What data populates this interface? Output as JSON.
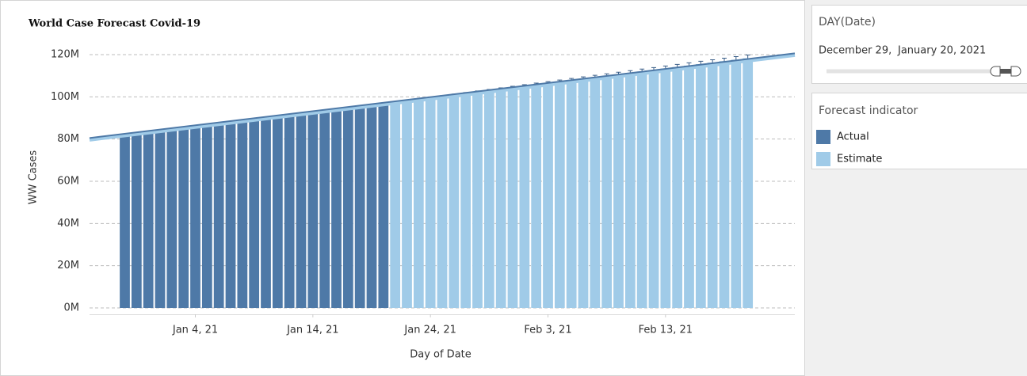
{
  "chart_data": {
    "type": "bar",
    "title": "World Case Forecast Covid-19",
    "x_label": "Day of Date",
    "y_label": "WW Cases",
    "legend_title": "Forecast indicator",
    "x": [
      "2020-12-29",
      "2020-12-30",
      "2020-12-31",
      "2021-01-01",
      "2021-01-02",
      "2021-01-03",
      "2021-01-04",
      "2021-01-05",
      "2021-01-06",
      "2021-01-07",
      "2021-01-08",
      "2021-01-09",
      "2021-01-10",
      "2021-01-11",
      "2021-01-12",
      "2021-01-13",
      "2021-01-14",
      "2021-01-15",
      "2021-01-16",
      "2021-01-17",
      "2021-01-18",
      "2021-01-19",
      "2021-01-20",
      "2021-01-21",
      "2021-01-22",
      "2021-01-23",
      "2021-01-24",
      "2021-01-25",
      "2021-01-26",
      "2021-01-27",
      "2021-01-28",
      "2021-01-29",
      "2021-01-30",
      "2021-01-31",
      "2021-02-01",
      "2021-02-02",
      "2021-02-03",
      "2021-02-04",
      "2021-02-05",
      "2021-02-06",
      "2021-02-07",
      "2021-02-08",
      "2021-02-09",
      "2021-02-10",
      "2021-02-11",
      "2021-02-12",
      "2021-02-13",
      "2021-02-14",
      "2021-02-15",
      "2021-02-16",
      "2021-02-17",
      "2021-02-18",
      "2021-02-19",
      "2021-02-20"
    ],
    "series": [
      {
        "name": "Actual",
        "color": "#4e79a7",
        "values": [
          81.9,
          82.5,
          83.1,
          83.7,
          84.4,
          85.0,
          85.6,
          86.3,
          87.0,
          87.7,
          88.4,
          89.0,
          89.7,
          90.4,
          91.1,
          91.8,
          92.5,
          93.2,
          93.8,
          94.5,
          95.2,
          95.9,
          96.6,
          null,
          null,
          null,
          null,
          null,
          null,
          null,
          null,
          null,
          null,
          null,
          null,
          null,
          null,
          null,
          null,
          null,
          null,
          null,
          null,
          null,
          null,
          null,
          null,
          null,
          null,
          null,
          null,
          null,
          null,
          null
        ]
      },
      {
        "name": "Estimate",
        "color": "#a0cbe8",
        "values": [
          null,
          null,
          null,
          null,
          null,
          null,
          null,
          null,
          null,
          null,
          null,
          null,
          null,
          null,
          null,
          null,
          null,
          null,
          null,
          null,
          null,
          null,
          null,
          97.3,
          98.0,
          98.7,
          99.4,
          100.1,
          100.8,
          101.5,
          102.2,
          102.9,
          103.6,
          104.3,
          105.0,
          105.7,
          106.4,
          107.1,
          107.8,
          108.5,
          109.2,
          109.9,
          110.6,
          111.3,
          112.0,
          112.7,
          113.4,
          114.1,
          114.8,
          115.5,
          116.2,
          116.9,
          117.6,
          118.3
        ],
        "errors": [
          null,
          null,
          null,
          null,
          null,
          null,
          null,
          null,
          null,
          null,
          null,
          null,
          null,
          null,
          null,
          null,
          null,
          null,
          null,
          null,
          null,
          null,
          null,
          0.3,
          0.34,
          0.38,
          0.42,
          0.46,
          0.5,
          0.54,
          0.58,
          0.62,
          0.66,
          0.7,
          0.74,
          0.78,
          0.82,
          0.86,
          0.9,
          0.94,
          0.98,
          1.02,
          1.06,
          1.1,
          1.14,
          1.18,
          1.22,
          1.26,
          1.3,
          1.34,
          1.38,
          1.42,
          1.46,
          1.5
        ]
      }
    ],
    "trend": {
      "color": "#4e79a7",
      "x": [
        "2020-12-26",
        "2021-02-24"
      ],
      "values": [
        80.5,
        120.6
      ]
    },
    "xlim": [
      "2020-12-26",
      "2021-02-24"
    ],
    "xticks": [
      {
        "value": "2021-01-04",
        "label": "Jan 4, 21"
      },
      {
        "value": "2021-01-14",
        "label": "Jan 14, 21"
      },
      {
        "value": "2021-01-24",
        "label": "Jan 24, 21"
      },
      {
        "value": "2021-02-03",
        "label": "Feb 3, 21"
      },
      {
        "value": "2021-02-13",
        "label": "Feb 13, 21"
      }
    ],
    "ylim": [
      -3,
      123
    ],
    "yticks": [
      {
        "value": 0,
        "label": "0M"
      },
      {
        "value": 20,
        "label": "20M"
      },
      {
        "value": 40,
        "label": "40M"
      },
      {
        "value": 60,
        "label": "60M"
      },
      {
        "value": 80,
        "label": "80M"
      },
      {
        "value": 100,
        "label": "100M"
      },
      {
        "value": 120,
        "label": "120M"
      }
    ],
    "grid": true
  },
  "filter": {
    "title": "DAY(Date)",
    "start": "December 29, 2020",
    "end": "January 20, 2021"
  }
}
